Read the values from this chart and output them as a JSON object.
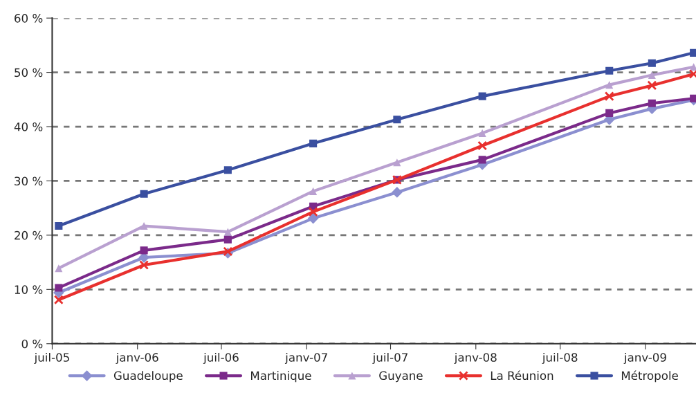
{
  "chart_data": {
    "type": "line",
    "x": [
      "2005-07-15",
      "2006-01-15",
      "2006-07-15",
      "2007-01-15",
      "2007-07-15",
      "2008-01-15",
      "2008-10-15",
      "2009-01-15",
      "2009-04-15"
    ],
    "series": [
      {
        "name": "Guadeloupe",
        "color": "#8b8fd0",
        "marker": "diamond",
        "values": [
          9.4,
          15.9,
          16.7,
          23.1,
          27.9,
          33.0,
          41.3,
          43.3,
          44.9
        ]
      },
      {
        "name": "Martinique",
        "color": "#7b2a8a",
        "marker": "square",
        "values": [
          10.3,
          17.2,
          19.2,
          25.3,
          30.2,
          33.9,
          42.5,
          44.3,
          45.2
        ]
      },
      {
        "name": "Guyane",
        "color": "#b9a0d0",
        "marker": "triangle",
        "values": [
          13.9,
          21.7,
          20.6,
          28.1,
          33.4,
          38.8,
          47.7,
          49.5,
          51.0
        ]
      },
      {
        "name": "La Réunion",
        "color": "#e8302e",
        "marker": "cross",
        "values": [
          8.1,
          14.5,
          17.0,
          24.3,
          30.2,
          36.5,
          45.6,
          47.6,
          49.7
        ]
      },
      {
        "name": "Métropole",
        "color": "#3a4fa0",
        "marker": "square",
        "values": [
          21.7,
          27.6,
          32.0,
          36.9,
          41.3,
          45.6,
          50.3,
          51.7,
          53.6
        ]
      }
    ],
    "xlim": [
      "2005-07-01",
      "2009-04-20"
    ],
    "xticks": [
      {
        "value": "2005-07-01",
        "label": "juil-05"
      },
      {
        "value": "2006-01-01",
        "label": "janv-06"
      },
      {
        "value": "2006-07-01",
        "label": "juil-06"
      },
      {
        "value": "2007-01-01",
        "label": "janv-07"
      },
      {
        "value": "2007-07-01",
        "label": "juil-07"
      },
      {
        "value": "2008-01-01",
        "label": "janv-08"
      },
      {
        "value": "2008-07-01",
        "label": "juil-08"
      },
      {
        "value": "2009-01-01",
        "label": "janv-09"
      }
    ],
    "ylim": [
      0,
      60
    ],
    "yticks": [
      {
        "value": 0,
        "label": "0 %"
      },
      {
        "value": 10,
        "label": "10 %"
      },
      {
        "value": 20,
        "label": "20 %"
      },
      {
        "value": 30,
        "label": "30 %"
      },
      {
        "value": 40,
        "label": "40 %"
      },
      {
        "value": 50,
        "label": "50 %"
      },
      {
        "value": 60,
        "label": "60 %"
      }
    ],
    "grid": "y",
    "legend": "bottom",
    "line_style": "solid"
  }
}
